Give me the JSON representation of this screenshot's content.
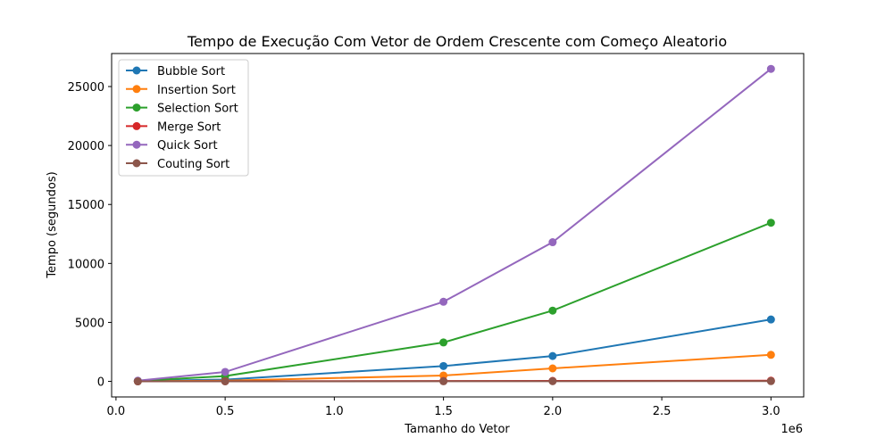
{
  "chart_data": {
    "type": "line",
    "title": "Tempo de Execução Com Vetor de Ordem Crescente com Começo Aleatorio",
    "xlabel": "Tamanho do Vetor",
    "ylabel": "Tempo (segundos)",
    "x_offset_label": "1e6",
    "x": [
      100000,
      500000,
      1500000,
      2000000,
      3000000
    ],
    "xlim": [
      -20000,
      3150000
    ],
    "ylim": [
      -1320,
      27800
    ],
    "xticks": [
      0,
      500000,
      1000000,
      1500000,
      2000000,
      2500000,
      3000000
    ],
    "xtick_labels": [
      "0.0",
      "0.5",
      "1.0",
      "1.5",
      "2.0",
      "2.5",
      "3.0"
    ],
    "yticks": [
      0,
      5000,
      10000,
      15000,
      20000,
      25000
    ],
    "ytick_labels": [
      "0",
      "5000",
      "10000",
      "15000",
      "20000",
      "25000"
    ],
    "grid": false,
    "legend_position": "upper left",
    "series": [
      {
        "name": "Bubble Sort",
        "color": "#1f77b4",
        "values": [
          30,
          150,
          1300,
          2150,
          5250
        ]
      },
      {
        "name": "Insertion Sort",
        "color": "#ff7f0e",
        "values": [
          10,
          60,
          500,
          1100,
          2250
        ]
      },
      {
        "name": "Selection Sort",
        "color": "#2ca02c",
        "values": [
          40,
          450,
          3300,
          6000,
          13450
        ]
      },
      {
        "name": "Merge Sort",
        "color": "#d62728",
        "values": [
          5,
          10,
          30,
          40,
          60
        ]
      },
      {
        "name": "Quick Sort",
        "color": "#9467bd",
        "values": [
          60,
          800,
          6750,
          11800,
          26500
        ]
      },
      {
        "name": "Couting Sort",
        "color": "#8c564b",
        "values": [
          2,
          5,
          10,
          15,
          20
        ]
      }
    ]
  }
}
